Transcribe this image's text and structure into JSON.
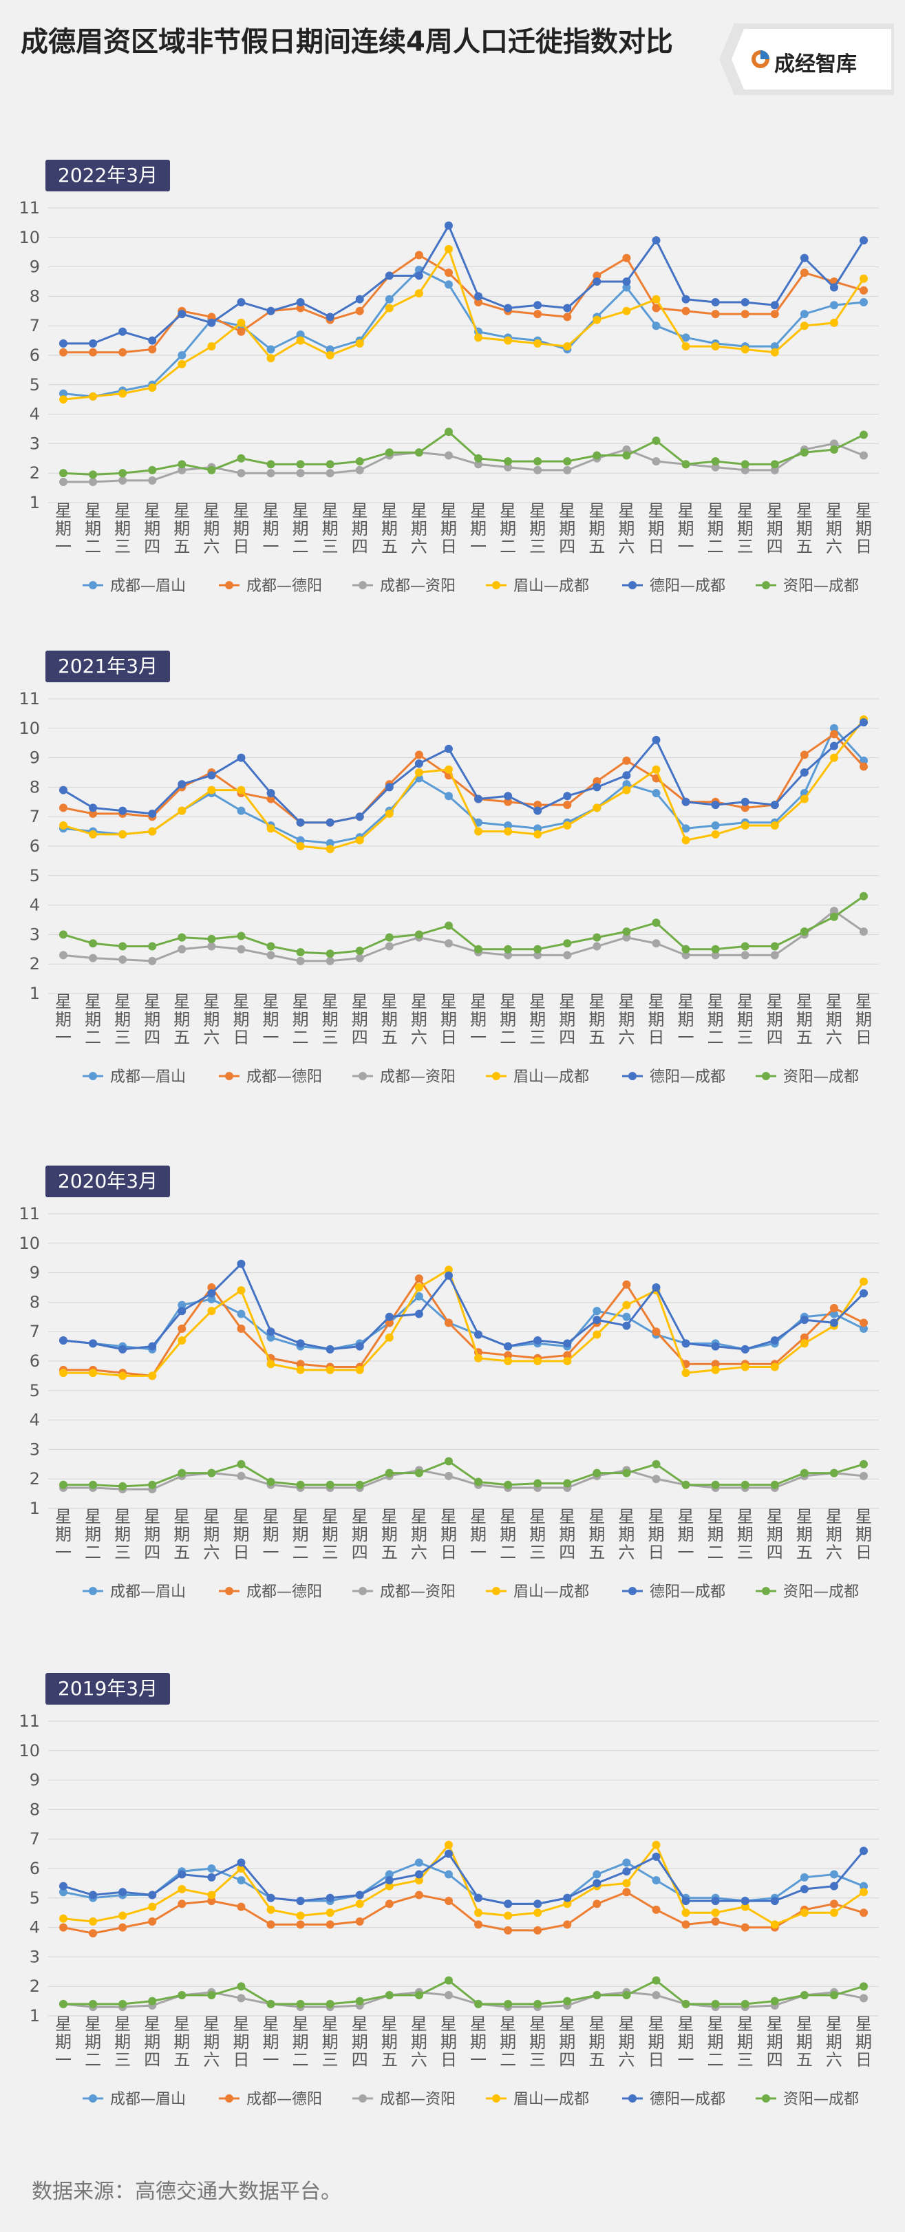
{
  "header": {
    "title": "成德眉资区域非节假日期间连续4周人口迁徙指数对比",
    "brand": "成经智库"
  },
  "source": "数据来源：高德交通大数据平台。",
  "colors": {
    "成都—眉山": "#5b9bd5",
    "成都—德阳": "#ed7d31",
    "成都—资阳": "#a5a5a5",
    "眉山—成都": "#ffc000",
    "德阳—成都": "#4472c4",
    "资阳—成都": "#70ad47"
  },
  "chart_data": [
    {
      "type": "line",
      "year_label": "2022年3月",
      "ylim": [
        1,
        11
      ],
      "yticks": [
        1,
        2,
        3,
        4,
        5,
        6,
        7,
        8,
        9,
        10,
        11
      ],
      "legend_position": "bottom",
      "categories": [
        "星期一",
        "星期二",
        "星期三",
        "星期四",
        "星期五",
        "星期六",
        "星期日",
        "星期一",
        "星期二",
        "星期三",
        "星期四",
        "星期五",
        "星期六",
        "星期日",
        "星期一",
        "星期二",
        "星期三",
        "星期四",
        "星期五",
        "星期六",
        "星期日",
        "星期一",
        "星期二",
        "星期三",
        "星期四",
        "星期五",
        "星期六",
        "星期日"
      ],
      "series": [
        {
          "name": "成都—眉山",
          "values": [
            4.7,
            4.6,
            4.8,
            5.0,
            6.0,
            7.2,
            7.0,
            6.2,
            6.7,
            6.2,
            6.5,
            7.9,
            8.9,
            8.4,
            6.8,
            6.6,
            6.5,
            6.2,
            7.3,
            8.3,
            7.0,
            6.6,
            6.4,
            6.3,
            6.3,
            7.4,
            7.7,
            7.8
          ]
        },
        {
          "name": "成都—德阳",
          "values": [
            6.1,
            6.1,
            6.1,
            6.2,
            7.5,
            7.3,
            6.8,
            7.5,
            7.6,
            7.2,
            7.5,
            8.7,
            9.4,
            8.8,
            7.8,
            7.5,
            7.4,
            7.3,
            8.7,
            9.3,
            7.6,
            7.5,
            7.4,
            7.4,
            7.4,
            8.8,
            8.5,
            8.2
          ]
        },
        {
          "name": "成都—资阳",
          "values": [
            1.7,
            1.7,
            1.75,
            1.75,
            2.1,
            2.2,
            2.0,
            2.0,
            2.0,
            2.0,
            2.1,
            2.6,
            2.7,
            2.6,
            2.3,
            2.2,
            2.1,
            2.1,
            2.5,
            2.8,
            2.4,
            2.3,
            2.2,
            2.1,
            2.1,
            2.8,
            3.0,
            2.6
          ]
        },
        {
          "name": "眉山—成都",
          "values": [
            4.5,
            4.6,
            4.7,
            4.9,
            5.7,
            6.3,
            7.1,
            5.9,
            6.5,
            6.0,
            6.4,
            7.6,
            8.1,
            9.6,
            6.6,
            6.5,
            6.4,
            6.3,
            7.2,
            7.5,
            7.9,
            6.3,
            6.3,
            6.2,
            6.1,
            7.0,
            7.1,
            8.6
          ]
        },
        {
          "name": "德阳—成都",
          "values": [
            6.4,
            6.4,
            6.8,
            6.5,
            7.4,
            7.1,
            7.8,
            7.5,
            7.8,
            7.3,
            7.9,
            8.7,
            8.7,
            10.4,
            8.0,
            7.6,
            7.7,
            7.6,
            8.5,
            8.5,
            9.9,
            7.9,
            7.8,
            7.8,
            7.7,
            9.3,
            8.3,
            9.9
          ]
        },
        {
          "name": "资阳—成都",
          "values": [
            2.0,
            1.95,
            2.0,
            2.1,
            2.3,
            2.1,
            2.5,
            2.3,
            2.3,
            2.3,
            2.4,
            2.7,
            2.7,
            3.4,
            2.5,
            2.4,
            2.4,
            2.4,
            2.6,
            2.6,
            3.1,
            2.3,
            2.4,
            2.3,
            2.3,
            2.7,
            2.8,
            3.3
          ]
        }
      ]
    },
    {
      "type": "line",
      "year_label": "2021年3月",
      "ylim": [
        1,
        11
      ],
      "yticks": [
        1,
        2,
        3,
        4,
        5,
        6,
        7,
        8,
        9,
        10,
        11
      ],
      "legend_position": "bottom",
      "categories": [
        "星期一",
        "星期二",
        "星期三",
        "星期四",
        "星期五",
        "星期六",
        "星期日",
        "星期一",
        "星期二",
        "星期三",
        "星期四",
        "星期五",
        "星期六",
        "星期日",
        "星期一",
        "星期二",
        "星期三",
        "星期四",
        "星期五",
        "星期六",
        "星期日",
        "星期一",
        "星期二",
        "星期三",
        "星期四",
        "星期五",
        "星期六",
        "星期日"
      ],
      "series": [
        {
          "name": "成都—眉山",
          "values": [
            6.6,
            6.5,
            6.4,
            6.5,
            7.2,
            7.8,
            7.2,
            6.7,
            6.2,
            6.1,
            6.3,
            7.2,
            8.3,
            7.7,
            6.8,
            6.7,
            6.6,
            6.8,
            7.3,
            8.1,
            7.8,
            6.6,
            6.7,
            6.8,
            6.8,
            7.8,
            10.0,
            8.9
          ]
        },
        {
          "name": "成都—德阳",
          "values": [
            7.3,
            7.1,
            7.1,
            7.0,
            8.0,
            8.5,
            7.8,
            7.6,
            6.8,
            6.8,
            7.0,
            8.1,
            9.1,
            8.4,
            7.6,
            7.5,
            7.4,
            7.4,
            8.2,
            8.9,
            8.3,
            7.5,
            7.5,
            7.3,
            7.4,
            9.1,
            9.8,
            8.7
          ]
        },
        {
          "name": "成都—资阳",
          "values": [
            2.3,
            2.2,
            2.15,
            2.1,
            2.5,
            2.6,
            2.5,
            2.3,
            2.1,
            2.1,
            2.2,
            2.6,
            2.9,
            2.7,
            2.4,
            2.3,
            2.3,
            2.3,
            2.6,
            2.9,
            2.7,
            2.3,
            2.3,
            2.3,
            2.3,
            3.0,
            3.8,
            3.1
          ]
        },
        {
          "name": "眉山—成都",
          "values": [
            6.7,
            6.4,
            6.4,
            6.5,
            7.2,
            7.9,
            7.9,
            6.6,
            6.0,
            5.9,
            6.2,
            7.1,
            8.5,
            8.6,
            6.5,
            6.5,
            6.4,
            6.7,
            7.3,
            7.9,
            8.6,
            6.2,
            6.4,
            6.7,
            6.7,
            7.6,
            9.0,
            10.3
          ]
        },
        {
          "name": "德阳—成都",
          "values": [
            7.9,
            7.3,
            7.2,
            7.1,
            8.1,
            8.4,
            9.0,
            7.8,
            6.8,
            6.8,
            7.0,
            8.0,
            8.8,
            9.3,
            7.6,
            7.7,
            7.2,
            7.7,
            8.0,
            8.4,
            9.6,
            7.5,
            7.4,
            7.5,
            7.4,
            8.5,
            9.4,
            10.2
          ]
        },
        {
          "name": "资阳—成都",
          "values": [
            3.0,
            2.7,
            2.6,
            2.6,
            2.9,
            2.85,
            2.95,
            2.6,
            2.4,
            2.35,
            2.45,
            2.9,
            3.0,
            3.3,
            2.5,
            2.5,
            2.5,
            2.7,
            2.9,
            3.1,
            3.4,
            2.5,
            2.5,
            2.6,
            2.6,
            3.1,
            3.6,
            4.3
          ]
        }
      ]
    },
    {
      "type": "line",
      "year_label": "2020年3月",
      "ylim": [
        1,
        11
      ],
      "yticks": [
        1,
        2,
        3,
        4,
        5,
        6,
        7,
        8,
        9,
        10,
        11
      ],
      "legend_position": "bottom",
      "categories": [
        "星期一",
        "星期二",
        "星期三",
        "星期四",
        "星期五",
        "星期六",
        "星期日",
        "星期一",
        "星期二",
        "星期三",
        "星期四",
        "星期五",
        "星期六",
        "星期日",
        "星期一",
        "星期二",
        "星期三",
        "星期四",
        "星期五",
        "星期六",
        "星期日",
        "星期一",
        "星期二",
        "星期三",
        "星期四",
        "星期五",
        "星期六",
        "星期日"
      ],
      "series": [
        {
          "name": "成都—眉山",
          "values": [
            6.7,
            6.6,
            6.5,
            6.4,
            7.9,
            8.1,
            7.6,
            6.8,
            6.5,
            6.4,
            6.6,
            7.3,
            8.2,
            7.3,
            6.9,
            6.5,
            6.6,
            6.5,
            7.7,
            7.5,
            6.9,
            6.6,
            6.6,
            6.4,
            6.6,
            7.5,
            7.6,
            7.1
          ]
        },
        {
          "name": "成都—德阳",
          "values": [
            5.7,
            5.7,
            5.6,
            5.5,
            7.1,
            8.5,
            7.1,
            6.1,
            5.9,
            5.8,
            5.8,
            7.3,
            8.8,
            7.3,
            6.3,
            6.2,
            6.1,
            6.2,
            7.3,
            8.6,
            7.0,
            5.9,
            5.9,
            5.9,
            5.9,
            6.8,
            7.8,
            7.3
          ]
        },
        {
          "name": "成都—资阳",
          "values": [
            1.7,
            1.7,
            1.65,
            1.65,
            2.1,
            2.2,
            2.1,
            1.8,
            1.7,
            1.7,
            1.7,
            2.1,
            2.3,
            2.1,
            1.8,
            1.7,
            1.7,
            1.7,
            2.1,
            2.3,
            2.0,
            1.8,
            1.7,
            1.7,
            1.7,
            2.1,
            2.2,
            2.1
          ]
        },
        {
          "name": "眉山—成都",
          "values": [
            5.6,
            5.6,
            5.5,
            5.5,
            6.7,
            7.7,
            8.4,
            5.9,
            5.7,
            5.7,
            5.7,
            6.8,
            8.5,
            9.1,
            6.1,
            6.0,
            6.0,
            6.0,
            6.9,
            7.9,
            8.4,
            5.6,
            5.7,
            5.8,
            5.8,
            6.6,
            7.2,
            8.7
          ]
        },
        {
          "name": "德阳—成都",
          "values": [
            6.7,
            6.6,
            6.4,
            6.5,
            7.7,
            8.3,
            9.3,
            7.0,
            6.6,
            6.4,
            6.5,
            7.5,
            7.6,
            8.9,
            6.9,
            6.5,
            6.7,
            6.6,
            7.4,
            7.2,
            8.5,
            6.6,
            6.5,
            6.4,
            6.7,
            7.4,
            7.3,
            8.3
          ]
        },
        {
          "name": "资阳—成都",
          "values": [
            1.8,
            1.8,
            1.75,
            1.8,
            2.2,
            2.2,
            2.5,
            1.9,
            1.8,
            1.8,
            1.8,
            2.2,
            2.2,
            2.6,
            1.9,
            1.8,
            1.85,
            1.85,
            2.2,
            2.2,
            2.5,
            1.8,
            1.8,
            1.8,
            1.8,
            2.2,
            2.2,
            2.5
          ]
        }
      ]
    },
    {
      "type": "line",
      "year_label": "2019年3月",
      "ylim": [
        1,
        11
      ],
      "yticks": [
        1,
        2,
        3,
        4,
        5,
        6,
        7,
        8,
        9,
        10,
        11
      ],
      "legend_position": "bottom",
      "categories": [
        "星期一",
        "星期二",
        "星期三",
        "星期四",
        "星期五",
        "星期六",
        "星期日",
        "星期一",
        "星期二",
        "星期三",
        "星期四",
        "星期五",
        "星期六",
        "星期日",
        "星期一",
        "星期二",
        "星期三",
        "星期四",
        "星期五",
        "星期六",
        "星期日",
        "星期一",
        "星期二",
        "星期三",
        "星期四",
        "星期五",
        "星期六",
        "星期日"
      ],
      "series": [
        {
          "name": "成都—眉山",
          "values": [
            5.2,
            5.0,
            5.1,
            5.1,
            5.9,
            6.0,
            5.6,
            5.0,
            4.9,
            4.9,
            5.1,
            5.8,
            6.2,
            5.8,
            5.0,
            4.8,
            4.8,
            5.0,
            5.8,
            6.2,
            5.6,
            5.0,
            5.0,
            4.9,
            5.0,
            5.7,
            5.8,
            5.4
          ]
        },
        {
          "name": "成都—德阳",
          "values": [
            4.0,
            3.8,
            4.0,
            4.2,
            4.8,
            4.9,
            4.7,
            4.1,
            4.1,
            4.1,
            4.2,
            4.8,
            5.1,
            4.9,
            4.1,
            3.9,
            3.9,
            4.1,
            4.8,
            5.2,
            4.6,
            4.1,
            4.2,
            4.0,
            4.0,
            4.6,
            4.8,
            4.5
          ]
        },
        {
          "name": "成都—资阳",
          "values": [
            1.4,
            1.3,
            1.3,
            1.35,
            1.7,
            1.8,
            1.6,
            1.4,
            1.3,
            1.3,
            1.35,
            1.7,
            1.8,
            1.7,
            1.4,
            1.3,
            1.3,
            1.35,
            1.7,
            1.8,
            1.7,
            1.4,
            1.3,
            1.3,
            1.35,
            1.7,
            1.8,
            1.6
          ]
        },
        {
          "name": "眉山—成都",
          "values": [
            4.3,
            4.2,
            4.4,
            4.7,
            5.3,
            5.1,
            6.0,
            4.6,
            4.4,
            4.5,
            4.8,
            5.4,
            5.6,
            6.8,
            4.5,
            4.4,
            4.5,
            4.8,
            5.4,
            5.5,
            6.8,
            4.5,
            4.5,
            4.7,
            4.1,
            4.5,
            4.5,
            5.2
          ]
        },
        {
          "name": "德阳—成都",
          "values": [
            5.4,
            5.1,
            5.2,
            5.1,
            5.8,
            5.7,
            6.2,
            5.0,
            4.9,
            5.0,
            5.1,
            5.6,
            5.8,
            6.5,
            5.0,
            4.8,
            4.8,
            5.0,
            5.5,
            5.9,
            6.4,
            4.9,
            4.9,
            4.9,
            4.9,
            5.3,
            5.4,
            6.6
          ]
        },
        {
          "name": "资阳—成都",
          "values": [
            1.4,
            1.4,
            1.4,
            1.5,
            1.7,
            1.7,
            2.0,
            1.4,
            1.4,
            1.4,
            1.5,
            1.7,
            1.7,
            2.2,
            1.4,
            1.4,
            1.4,
            1.5,
            1.7,
            1.7,
            2.2,
            1.4,
            1.4,
            1.4,
            1.5,
            1.7,
            1.7,
            2.0
          ]
        }
      ]
    }
  ]
}
